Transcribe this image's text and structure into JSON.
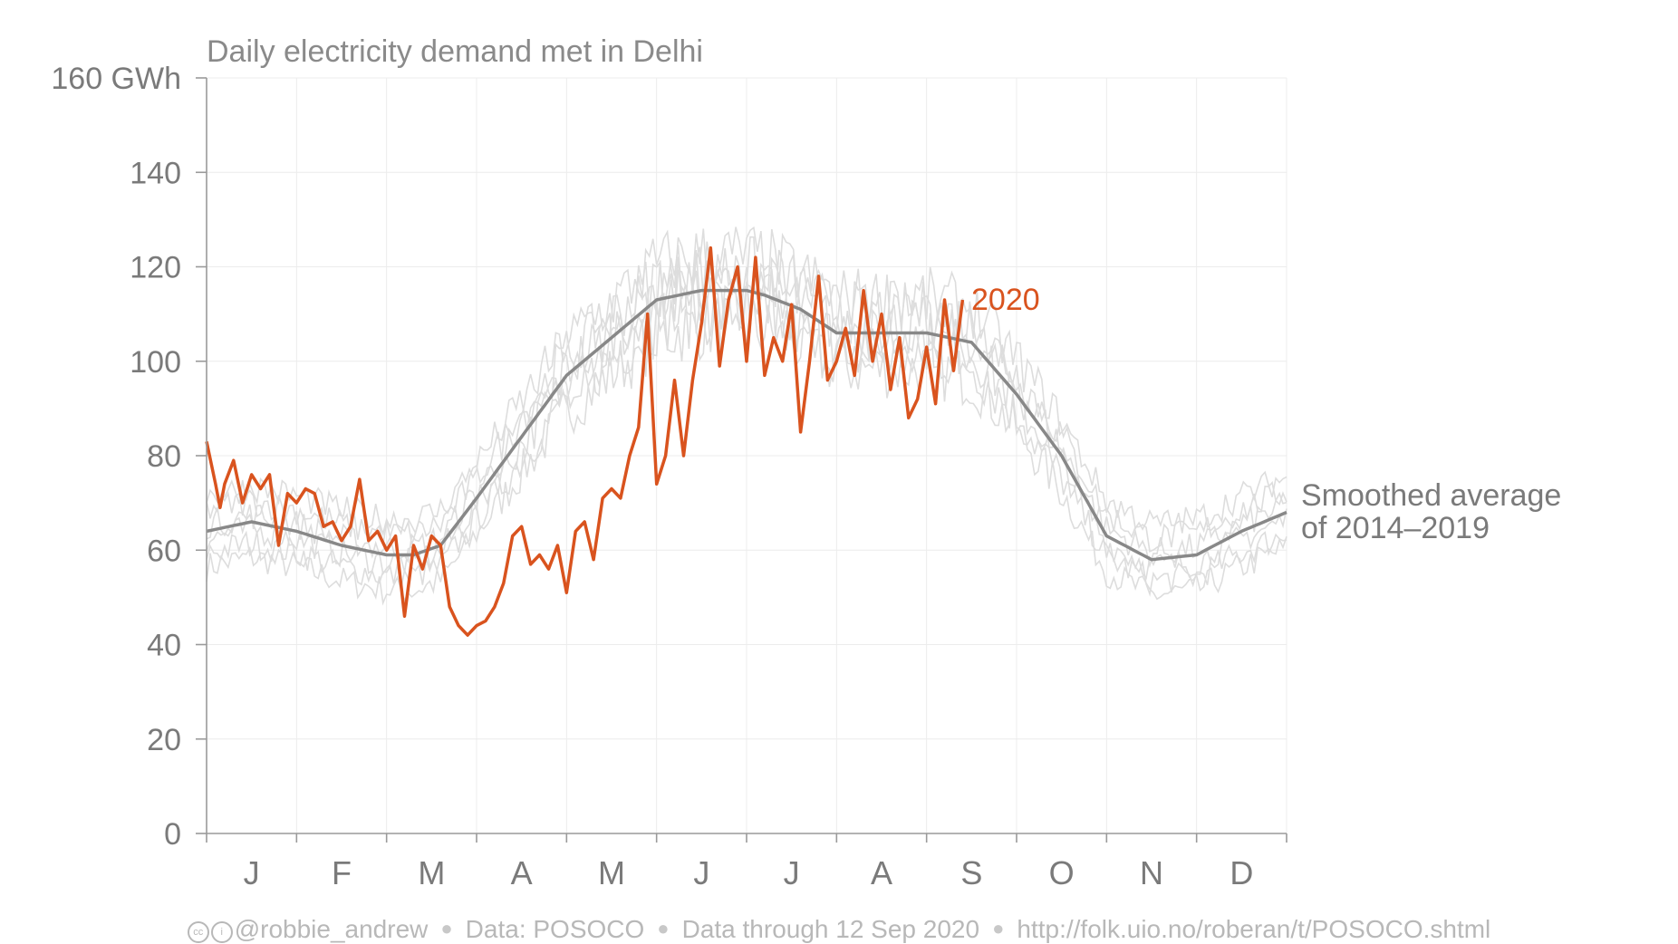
{
  "chart_data": {
    "type": "line",
    "title": "Daily electricity demand met in Delhi",
    "ylabel_unit": "GWh",
    "ylim": [
      0,
      160
    ],
    "yticks": [
      0,
      20,
      40,
      60,
      80,
      100,
      120,
      140,
      160
    ],
    "ytick_labels": [
      "0",
      "20",
      "40",
      "60",
      "80",
      "100",
      "120",
      "140",
      "160 GWh"
    ],
    "xlim_month": [
      0,
      12
    ],
    "month_labels": [
      "J",
      "F",
      "M",
      "A",
      "M",
      "J",
      "J",
      "A",
      "S",
      "O",
      "N",
      "D"
    ],
    "grid": true,
    "colors": {
      "series_2020": "#d9531e",
      "average": "#888888",
      "history": "#dddddd",
      "axis": "#9a9a9a"
    },
    "series": [
      {
        "name": "2020",
        "color": "#d9531e",
        "x_month": [
          0.0,
          0.1,
          0.15,
          0.2,
          0.3,
          0.4,
          0.5,
          0.6,
          0.7,
          0.8,
          0.9,
          1.0,
          1.1,
          1.2,
          1.3,
          1.4,
          1.5,
          1.6,
          1.7,
          1.8,
          1.9,
          2.0,
          2.1,
          2.2,
          2.3,
          2.4,
          2.5,
          2.6,
          2.7,
          2.8,
          2.9,
          3.0,
          3.1,
          3.2,
          3.3,
          3.4,
          3.5,
          3.6,
          3.7,
          3.8,
          3.9,
          4.0,
          4.1,
          4.2,
          4.3,
          4.4,
          4.5,
          4.6,
          4.7,
          4.8,
          4.9,
          5.0,
          5.1,
          5.2,
          5.3,
          5.4,
          5.5,
          5.6,
          5.7,
          5.8,
          5.9,
          6.0,
          6.1,
          6.2,
          6.3,
          6.4,
          6.5,
          6.6,
          6.7,
          6.8,
          6.9,
          7.0,
          7.1,
          7.2,
          7.3,
          7.4,
          7.5,
          7.6,
          7.7,
          7.8,
          7.9,
          8.0,
          8.1,
          8.2,
          8.3,
          8.4
        ],
        "y": [
          83,
          74,
          69,
          74,
          79,
          70,
          76,
          73,
          76,
          61,
          72,
          70,
          73,
          72,
          65,
          66,
          62,
          65,
          75,
          62,
          64,
          60,
          63,
          46,
          61,
          56,
          63,
          61,
          48,
          44,
          42,
          44,
          45,
          48,
          53,
          63,
          65,
          57,
          59,
          56,
          61,
          51,
          64,
          66,
          58,
          71,
          73,
          71,
          80,
          86,
          110,
          74,
          80,
          96,
          80,
          96,
          108,
          124,
          99,
          113,
          120,
          100,
          122,
          97,
          105,
          100,
          112,
          85,
          100,
          118,
          96,
          100,
          107,
          97,
          115,
          100,
          110,
          94,
          105,
          88,
          92,
          103,
          91,
          113,
          98,
          113
        ],
        "markers": "none"
      },
      {
        "name": "Smoothed average of 2014–2019",
        "color": "#888888",
        "x_month": [
          0.0,
          0.5,
          1.0,
          1.5,
          2.0,
          2.3,
          2.6,
          3.0,
          3.5,
          4.0,
          4.5,
          5.0,
          5.5,
          6.0,
          6.2,
          6.6,
          7.0,
          7.5,
          8.0,
          8.5,
          9.0,
          9.5,
          10.0,
          10.5,
          11.0,
          11.5,
          12.0
        ],
        "y": [
          64,
          66,
          64,
          61,
          59,
          59,
          61,
          71,
          84,
          97,
          105,
          113,
          115,
          115,
          114,
          111,
          106,
          106,
          106,
          104,
          93,
          80,
          63,
          58,
          59,
          64,
          68
        ]
      }
    ],
    "annotations": {
      "series_2020_label": "2020",
      "average_label": [
        "Smoothed average",
        "of 2014–2019"
      ]
    }
  },
  "footer": {
    "handle": "@robbie_andrew",
    "source": "Data: POSOCO",
    "through": "Data through 12 Sep 2020",
    "url": "http://folk.uio.no/roberan/t/POSOCO.shtml"
  }
}
